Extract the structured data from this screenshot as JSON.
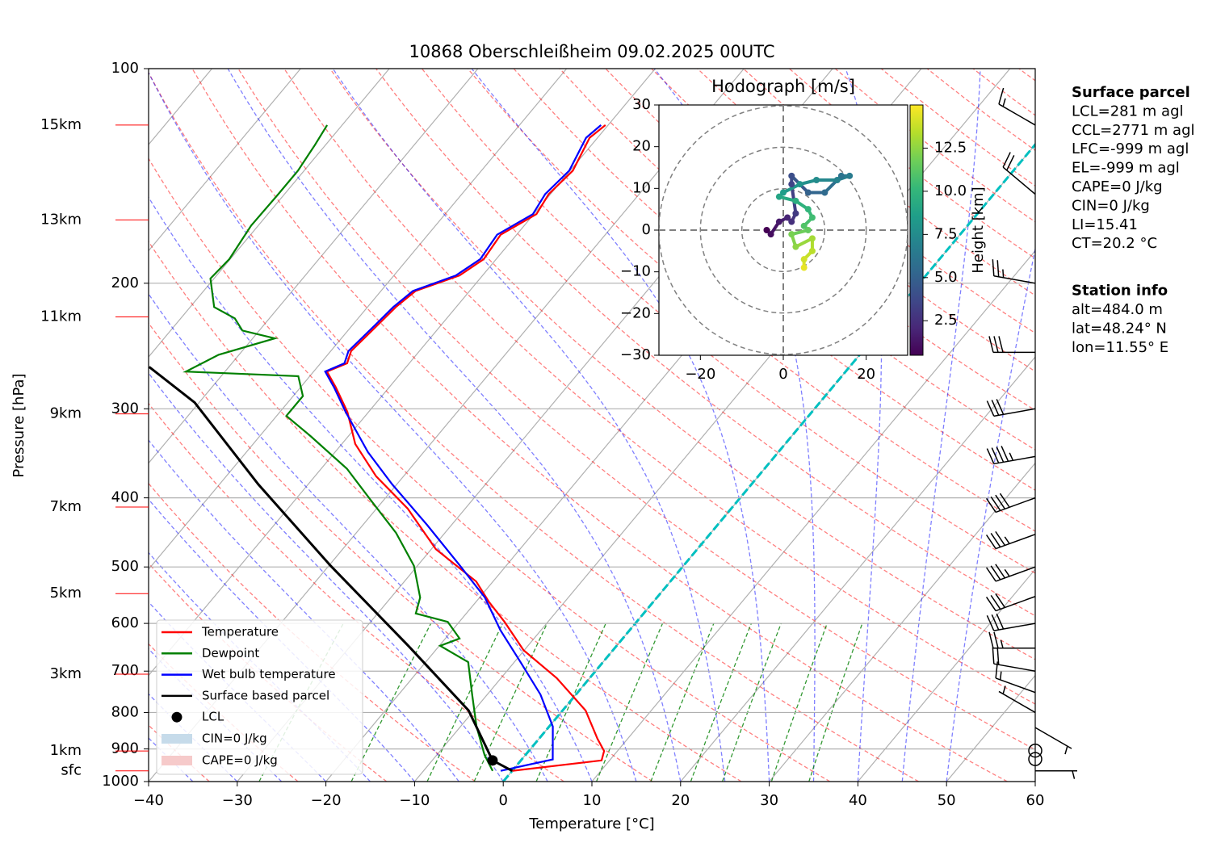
{
  "chart_data": [
    {
      "type": "skewt",
      "title": "10868 Oberschleißheim 09.02.2025 00UTC",
      "xlabel": "Temperature [°C]",
      "ylabel": "Pressure [hPa]",
      "xlim": [
        -40,
        60
      ],
      "ylim": [
        1000,
        100
      ],
      "log_y": true,
      "grid": true,
      "legend": "lower left",
      "xticks": [
        {
          "value": -40,
          "label": "−40"
        },
        {
          "value": -30,
          "label": "−30"
        },
        {
          "value": -20,
          "label": "−20"
        },
        {
          "value": -10,
          "label": "−10"
        },
        0,
        10,
        20,
        30,
        40,
        50,
        60
      ],
      "yticks": [
        100,
        200,
        300,
        400,
        500,
        600,
        700,
        800,
        900,
        1000
      ],
      "series": [
        {
          "name": "Temperature",
          "color": "#ff0000",
          "pressure": [
            966,
            934,
            906,
            871,
            795,
            716,
            654,
            597,
            559,
            524,
            472,
            414,
            373,
            336,
            303,
            280,
            266,
            259,
            249,
            227,
            216,
            205,
            195,
            185,
            171,
            160,
            150,
            139,
            125,
            120
          ],
          "values": [
            0,
            9.1,
            8.5,
            6.6,
            2.6,
            -3.7,
            -10.1,
            -14.9,
            -18.6,
            -21.9,
            -29.5,
            -36.5,
            -43.1,
            -48.5,
            -52.4,
            -56,
            -58.5,
            -57,
            -57.7,
            -57.1,
            -56.8,
            -56.1,
            -52.6,
            -51.4,
            -51.8,
            -49.7,
            -50.2,
            -49.7,
            -50.9,
            -50.3
          ]
        },
        {
          "name": "Dewpoint",
          "color": "#008000",
          "pressure": [
            966,
            918,
            837,
            755,
            680,
            645,
            630,
            597,
            581,
            552,
            498,
            448,
            404,
            364,
            328,
            307,
            288,
            270,
            266,
            252,
            239,
            233,
            224,
            216,
            197,
            185,
            166,
            150,
            139,
            128,
            120
          ],
          "values": [
            -2.2,
            -4.6,
            -8.2,
            -11.7,
            -15.2,
            -19.9,
            -18.4,
            -21.3,
            -25.7,
            -26.7,
            -30.4,
            -35.5,
            -41.3,
            -47.1,
            -54.2,
            -58.9,
            -58.9,
            -61.3,
            -74.4,
            -72.3,
            -67.5,
            -71.9,
            -73.9,
            -77.3,
            -80.4,
            -80.1,
            -80.8,
            -80.7,
            -80.7,
            -81.2,
            -81.7
          ]
        },
        {
          "name": "Wet bulb temperature",
          "color": "#0000ff",
          "pressure": [
            966,
            931,
            837,
            755,
            680,
            613,
            552,
            498,
            437,
            383,
            345,
            303,
            280,
            266,
            259,
            249,
            227,
            216,
            205,
            195,
            185,
            171,
            160,
            150,
            139,
            125,
            120
          ],
          "values": [
            -1.3,
            3.5,
            0.4,
            -4,
            -9.3,
            -14.6,
            -19.4,
            -25.2,
            -32.7,
            -40.5,
            -46.3,
            -52.6,
            -56.2,
            -58.7,
            -57.3,
            -58,
            -57.4,
            -57.1,
            -56.4,
            -53,
            -51.8,
            -52.2,
            -50.1,
            -50.6,
            -50.1,
            -51.3,
            -50.8
          ]
        },
        {
          "name": "Surface based parcel",
          "color": "#000000",
          "pressure": [
            966,
            934,
            795,
            645,
            498,
            383,
            294,
            262
          ],
          "values": [
            0,
            -3.2,
            -10.6,
            -23.5,
            -39.8,
            -55.6,
            -70.5,
            -79
          ]
        }
      ],
      "lcl": {
        "name": "LCL",
        "color": "#000000",
        "pressure": 934,
        "value": -3.2
      },
      "shading": [
        {
          "name": "CIN=0 J/kg",
          "color": "#c6dbea"
        },
        {
          "name": "CAPE=0 J/kg",
          "color": "#f6caca"
        }
      ],
      "height_labels": [
        {
          "label": "15km",
          "pressure": 120
        },
        {
          "label": "13km",
          "pressure": 163
        },
        {
          "label": "11km",
          "pressure": 223
        },
        {
          "label": "9km",
          "pressure": 305
        },
        {
          "label": "7km",
          "pressure": 412
        },
        {
          "label": "5km",
          "pressure": 545
        },
        {
          "label": "3km",
          "pressure": 707
        },
        {
          "label": "1km",
          "pressure": 906
        },
        {
          "label": "sfc",
          "pressure": 966
        }
      ],
      "height_label_color": "#ff0000",
      "wind": {
        "pressure": [
          120,
          150,
          200,
          250,
          300,
          350,
          400,
          450,
          500,
          550,
          600,
          650,
          700,
          750,
          800,
          840,
          905,
          930,
          966
        ],
        "direction": [
          300,
          310,
          280,
          270,
          260,
          260,
          250,
          250,
          250,
          250,
          260,
          270,
          280,
          290,
          300,
          120,
          0,
          0,
          90
        ],
        "speed": [
          15,
          20,
          25,
          30,
          30,
          45,
          40,
          35,
          35,
          30,
          30,
          25,
          20,
          15,
          5,
          5,
          0,
          0,
          5
        ]
      }
    },
    {
      "type": "hodograph",
      "title": "Hodograph [m/s]",
      "colormap": "viridis",
      "xlim": [
        -30,
        30
      ],
      "ylim": [
        -30,
        30
      ],
      "xticks": [
        {
          "value": -20,
          "label": "−20"
        },
        0,
        20
      ],
      "yticks": [
        {
          "value": -30,
          "label": "−30"
        },
        {
          "value": -20,
          "label": "−20"
        },
        {
          "value": -10,
          "label": "−10"
        },
        0,
        10,
        20,
        30
      ],
      "u": [
        -4,
        -3,
        -1,
        1,
        2,
        3,
        2,
        2,
        6,
        10,
        14,
        16,
        13,
        8,
        4,
        0,
        -1,
        3,
        6,
        7,
        5,
        6,
        2,
        3,
        7,
        7,
        5,
        5
      ],
      "v": [
        0,
        -1,
        2,
        3,
        2,
        4,
        11,
        13,
        9,
        9,
        13,
        13,
        12,
        12,
        11,
        9,
        8,
        7,
        5,
        3,
        1,
        0,
        -1,
        -4,
        -2,
        -5,
        -7,
        -9
      ],
      "height": [
        0.5,
        1,
        1.5,
        2,
        2.5,
        3,
        3.5,
        4,
        5,
        5.5,
        6,
        6.5,
        7,
        7.5,
        8,
        8.5,
        9,
        9.5,
        10,
        10.5,
        11,
        11.5,
        12,
        12.5,
        13,
        13.5,
        14,
        14.5
      ],
      "colorbar": {
        "label": "Height [km]",
        "lim": [
          0.5,
          15
        ],
        "ticks": [
          2.5,
          {
            "value": 5,
            "label": "5.0"
          },
          7.5,
          {
            "value": 10,
            "label": "10.0"
          },
          12.5
        ]
      }
    }
  ],
  "info": [
    {
      "title": "Surface parcel",
      "lines": [
        "LCL=281 m agl",
        "CCL=2771 m agl",
        "LFC=-999 m agl",
        "EL=-999 m agl",
        "CAPE=0 J/kg",
        "CIN=0 J/kg",
        "LI=15.41",
        "CT=20.2 °C"
      ]
    },
    {
      "title": "Station info",
      "lines": [
        "alt=484.0 m",
        "lat=48.24° N",
        "lon=11.55° E"
      ]
    }
  ]
}
